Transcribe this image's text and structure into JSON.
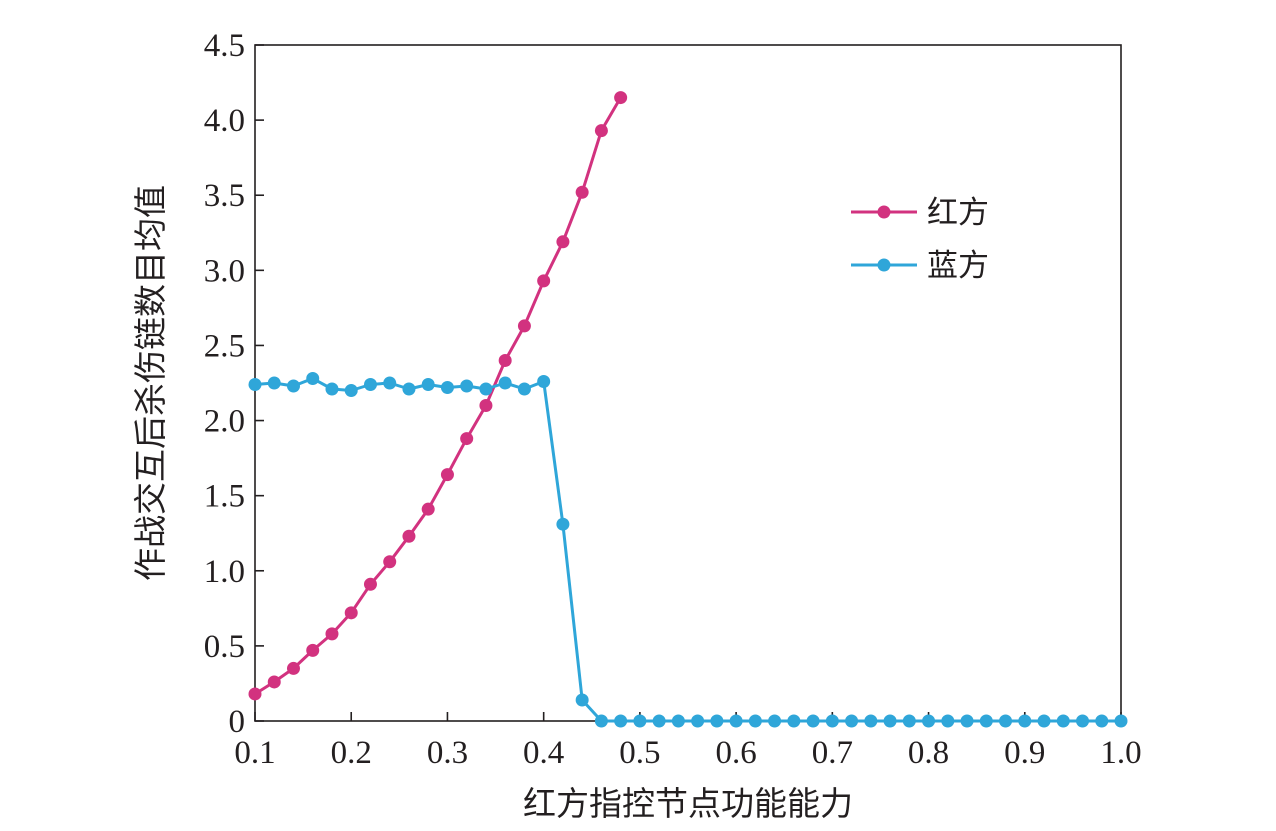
{
  "chart_data": {
    "type": "line",
    "title": "",
    "xlabel": "红方指控节点功能能力",
    "ylabel": "作战交互后杀伤链数目均值",
    "xlim": [
      0.1,
      1.0
    ],
    "ylim": [
      0,
      4.5
    ],
    "x_ticks": [
      "0.1",
      "0.2",
      "0.3",
      "0.4",
      "0.5",
      "0.6",
      "0.7",
      "0.8",
      "0.9",
      "1.0"
    ],
    "y_ticks": [
      "0",
      "0.5",
      "1.0",
      "1.5",
      "2.0",
      "2.5",
      "3.0",
      "3.5",
      "4.0",
      "4.5"
    ],
    "grid": false,
    "legend_position": "right",
    "series": [
      {
        "name": "红方",
        "color": "#d2327f",
        "x": [
          0.1,
          0.12,
          0.14,
          0.16,
          0.18,
          0.2,
          0.22,
          0.24,
          0.26,
          0.28,
          0.3,
          0.32,
          0.34,
          0.36,
          0.38,
          0.4,
          0.42,
          0.44,
          0.46,
          0.48
        ],
        "y": [
          0.18,
          0.26,
          0.35,
          0.47,
          0.58,
          0.72,
          0.91,
          1.06,
          1.23,
          1.41,
          1.64,
          1.88,
          2.1,
          2.4,
          2.63,
          2.93,
          3.19,
          3.52,
          3.93,
          4.15
        ]
      },
      {
        "name": "蓝方",
        "color": "#2fa6d9",
        "x": [
          0.1,
          0.12,
          0.14,
          0.16,
          0.18,
          0.2,
          0.22,
          0.24,
          0.26,
          0.28,
          0.3,
          0.32,
          0.34,
          0.36,
          0.38,
          0.4,
          0.42,
          0.44,
          0.46,
          0.48,
          0.5,
          0.52,
          0.54,
          0.56,
          0.58,
          0.6,
          0.62,
          0.64,
          0.66,
          0.68,
          0.7,
          0.72,
          0.74,
          0.76,
          0.78,
          0.8,
          0.82,
          0.84,
          0.86,
          0.88,
          0.9,
          0.92,
          0.94,
          0.96,
          0.98,
          1.0
        ],
        "y": [
          2.24,
          2.25,
          2.23,
          2.28,
          2.21,
          2.2,
          2.24,
          2.25,
          2.21,
          2.24,
          2.22,
          2.23,
          2.21,
          2.25,
          2.21,
          2.26,
          1.31,
          0.14,
          0,
          0,
          0,
          0,
          0,
          0,
          0,
          0,
          0,
          0,
          0,
          0,
          0,
          0,
          0,
          0,
          0,
          0,
          0,
          0,
          0,
          0,
          0,
          0,
          0,
          0,
          0,
          0
        ]
      }
    ]
  }
}
